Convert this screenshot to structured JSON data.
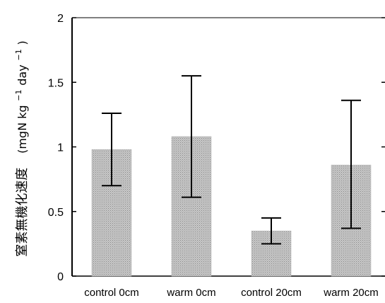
{
  "chart_data": {
    "type": "bar",
    "categories": [
      "control 0cm",
      "warm 0cm",
      "control 20cm",
      "warm 20cm"
    ],
    "values": [
      0.98,
      1.08,
      0.35,
      0.86
    ],
    "errors": [
      {
        "low": 0.7,
        "high": 1.26
      },
      {
        "low": 0.61,
        "high": 1.55
      },
      {
        "low": 0.25,
        "high": 0.45
      },
      {
        "low": 0.37,
        "high": 1.36
      }
    ],
    "ylim": [
      0,
      2
    ],
    "yticks": [
      "0",
      "0.5",
      "1",
      "1.5",
      "2"
    ],
    "ylabel_text": "窒素無機化速度",
    "ylabel_unit": "(mgN kg",
    "ylabel_unit_exp1": "−1",
    "ylabel_unit_mid": " day",
    "ylabel_unit_exp2": "−1",
    "ylabel_unit_end": ")",
    "bar_color": "#bdbdbd",
    "grid": false
  }
}
